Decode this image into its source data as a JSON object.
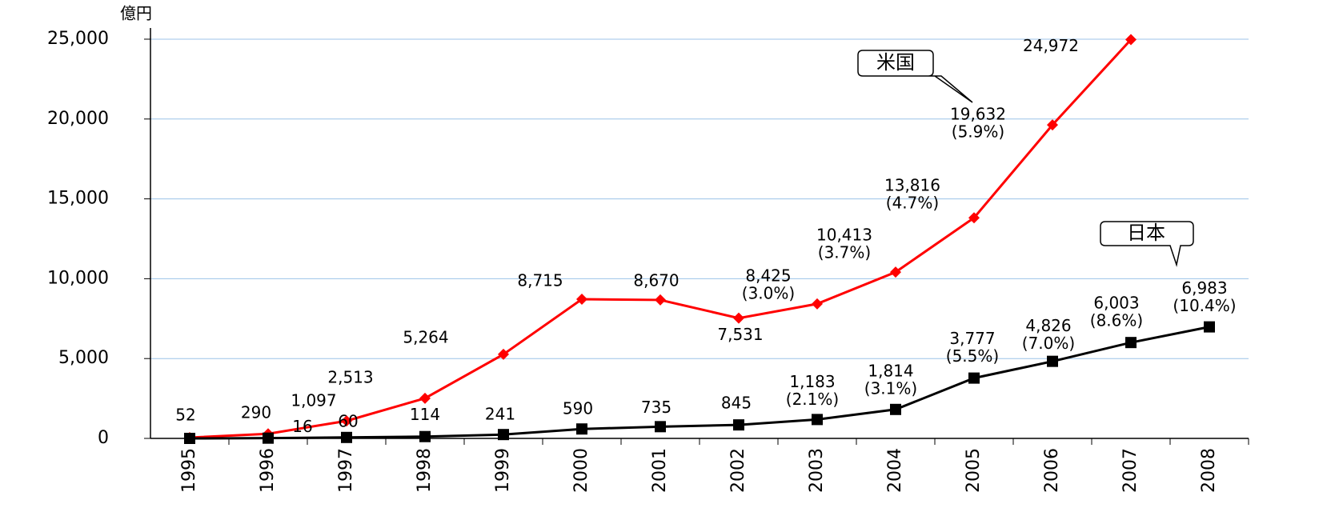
{
  "chart_data": {
    "type": "line",
    "y_label": "億円",
    "categories": [
      "1995",
      "1996",
      "1997",
      "1998",
      "1999",
      "2000",
      "2001",
      "2002",
      "2003",
      "2004",
      "2005",
      "2006",
      "2007",
      "2008"
    ],
    "ylim": [
      0,
      25700
    ],
    "yticks": [
      0,
      {
        "value": 5000,
        "label": "5,000"
      },
      {
        "value": 10000,
        "label": "10,000"
      },
      {
        "value": 15000,
        "label": "15,000"
      },
      {
        "value": 20000,
        "label": "20,000"
      },
      {
        "value": 25000,
        "label": "25,000"
      }
    ],
    "grid": true,
    "series": [
      {
        "name": "米国",
        "color": "#ff0000",
        "marker": "diamond",
        "values": [
          52,
          290,
          1097,
          2513,
          5264,
          8715,
          8670,
          7531,
          8425,
          10413,
          13816,
          19632,
          24972,
          null
        ],
        "value_labels": [
          "52",
          "290",
          "1,097",
          "2,513",
          "5,264",
          "8,715",
          "8,670",
          "7,531",
          "8,425",
          "10,413",
          "13,816",
          "19,632",
          "24,972",
          null
        ],
        "shares": [
          null,
          null,
          null,
          null,
          null,
          null,
          null,
          null,
          "(3.0%)",
          "(3.7%)",
          "(4.7%)",
          "(5.9%)",
          null,
          null
        ]
      },
      {
        "name": "日本",
        "color": "#000000",
        "marker": "square",
        "values": [
          0,
          16,
          60,
          114,
          241,
          590,
          735,
          845,
          1183,
          1814,
          3777,
          4826,
          6003,
          6983
        ],
        "value_labels": [
          null,
          "16",
          "60",
          "114",
          "241",
          "590",
          "735",
          "845",
          "1,183",
          "1,814",
          "3,777",
          "4,826",
          "6,003",
          "6,983"
        ],
        "shares": [
          null,
          null,
          null,
          null,
          null,
          null,
          null,
          null,
          "(2.1%)",
          "(3.1%)",
          "(5.5%)",
          "(7.0%)",
          "(8.6%)",
          "(10.4%)"
        ]
      }
    ]
  }
}
